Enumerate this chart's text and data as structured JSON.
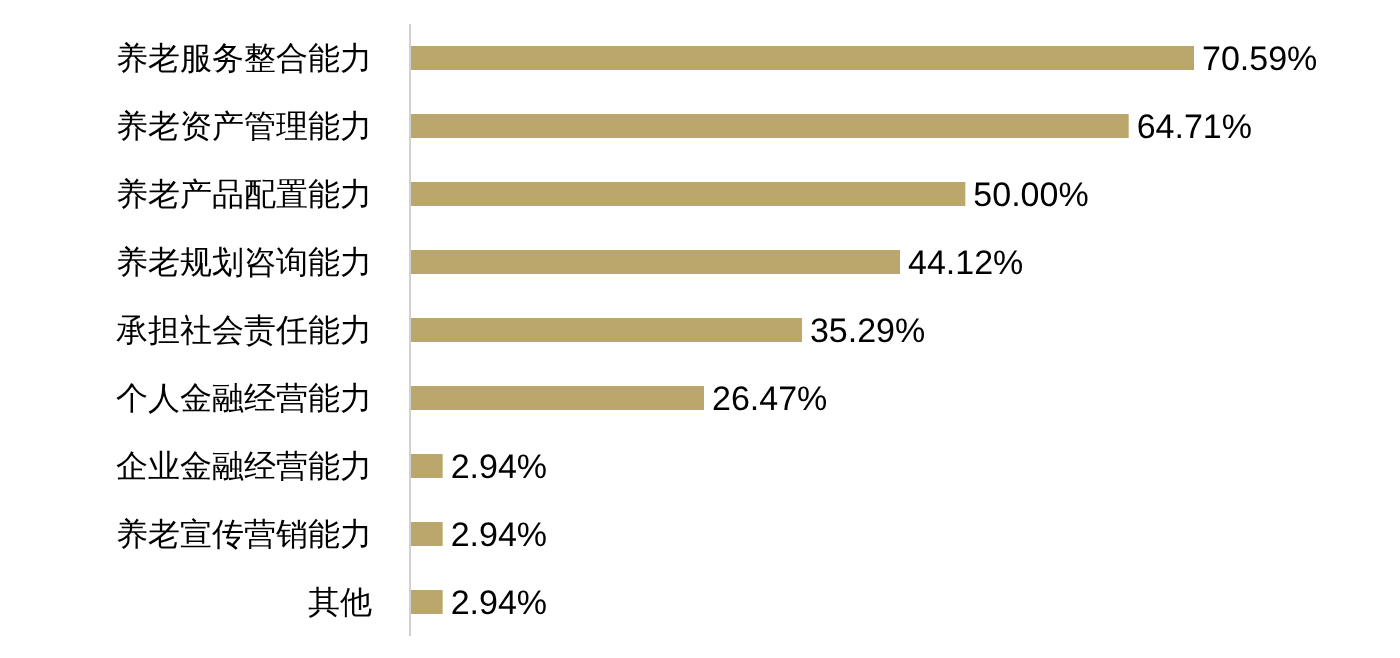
{
  "chart_data": {
    "type": "bar",
    "orientation": "horizontal",
    "categories": [
      "养老服务整合能力",
      "养老资产管理能力",
      "养老产品配置能力",
      "养老规划咨询能力",
      "承担社会责任能力",
      "个人金融经营能力",
      "企业金融经营能力",
      "养老宣传营销能力",
      "其他"
    ],
    "values": [
      70.59,
      64.71,
      50.0,
      44.12,
      35.29,
      26.47,
      2.94,
      2.94,
      2.94
    ],
    "value_labels": [
      "70.59%",
      "64.71%",
      "50.00%",
      "44.12%",
      "35.29%",
      "26.47%",
      "2.94%",
      "2.94%",
      "2.94%"
    ],
    "color": "#bba66b"
  }
}
